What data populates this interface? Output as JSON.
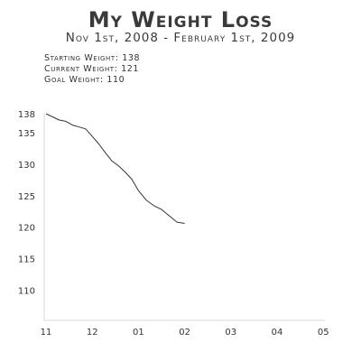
{
  "header": {
    "title": "My Weight Loss",
    "subtitle": "Nov 1st, 2008 - February 1st, 2009"
  },
  "stats": {
    "starting": "Starting Weight: 138",
    "current": "Current Weight: 121",
    "goal": "Goal Weight: 110"
  },
  "chart_data": {
    "type": "line",
    "title": "My Weight Loss",
    "subtitle": "Nov 1st, 2008 - February 1st, 2009",
    "xlabel": "",
    "ylabel": "",
    "x_ticks": [
      "11",
      "12",
      "01",
      "02",
      "03",
      "04",
      "05"
    ],
    "y_ticks": [
      110,
      115,
      120,
      125,
      130,
      135,
      138
    ],
    "ylim": [
      105.2,
      138
    ],
    "grid": false,
    "series": [
      {
        "values": [
          {
            "x": "11",
            "y": 138.0
          },
          {
            "x": "11",
            "y": 137.5
          },
          {
            "x": "11",
            "y": 137.0
          },
          {
            "x": "11",
            "y": 136.8
          },
          {
            "x": "11",
            "y": 136.2
          },
          {
            "x": "11",
            "y": 135.9
          },
          {
            "x": "11",
            "y": 135.6
          },
          {
            "x": "12",
            "y": 134.4
          },
          {
            "x": "12",
            "y": 133.2
          },
          {
            "x": "12",
            "y": 131.8
          },
          {
            "x": "12",
            "y": 130.5
          },
          {
            "x": "12",
            "y": 129.7
          },
          {
            "x": "12",
            "y": 128.7
          },
          {
            "x": "12",
            "y": 127.6
          },
          {
            "x": "01",
            "y": 125.8
          },
          {
            "x": "01",
            "y": 124.3
          },
          {
            "x": "01",
            "y": 123.4
          },
          {
            "x": "01",
            "y": 122.8
          },
          {
            "x": "01",
            "y": 121.8
          },
          {
            "x": "01",
            "y": 120.8
          },
          {
            "x": "02",
            "y": 120.6
          }
        ],
        "color": "#333333"
      }
    ]
  }
}
